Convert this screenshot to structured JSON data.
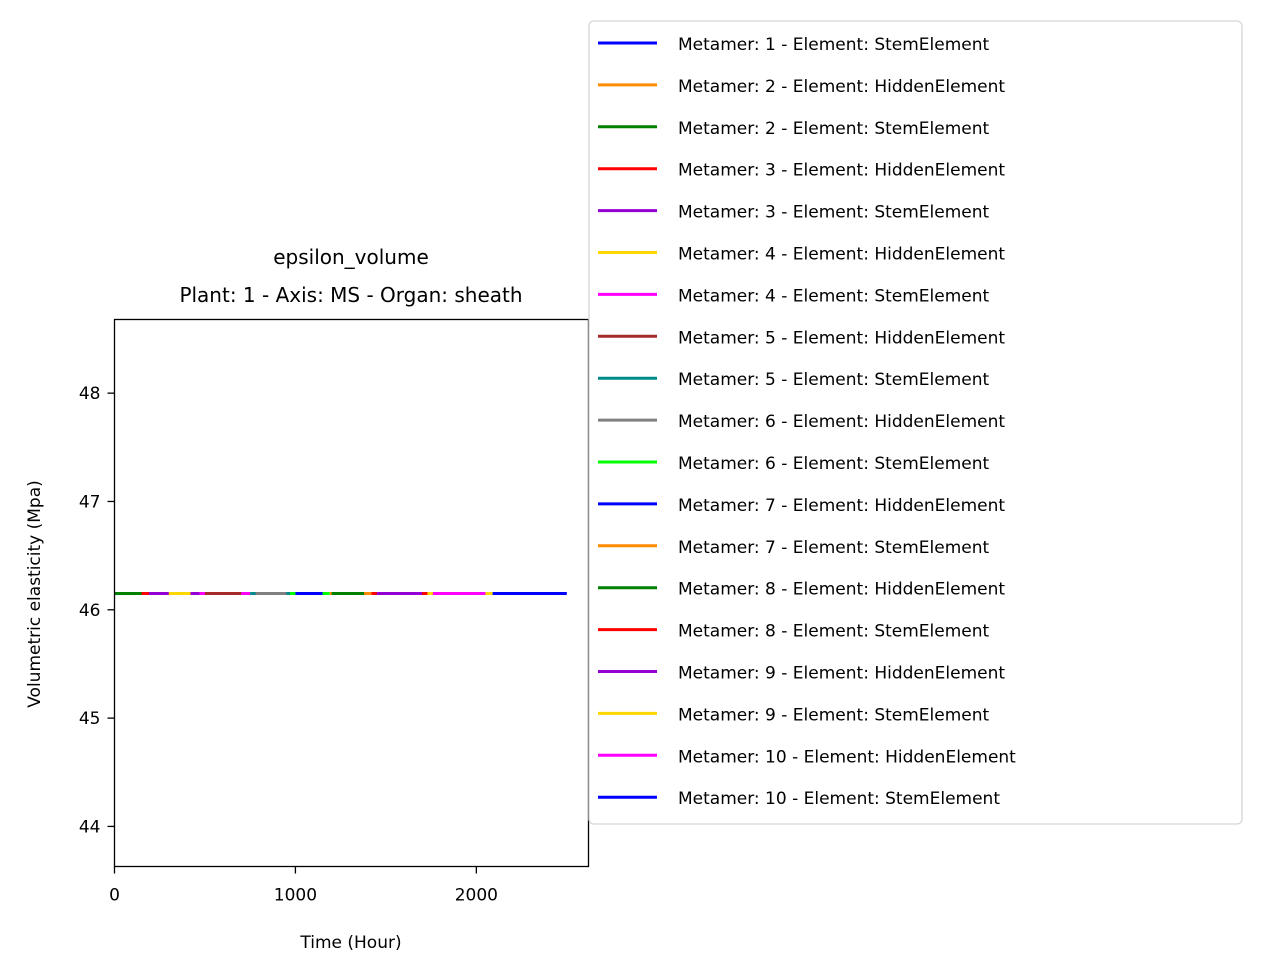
{
  "chart_data": {
    "type": "line",
    "title": "epsilon_volume",
    "subtitle": "Plant: 1 - Axis: MS - Organ: sheath",
    "xlabel": "Time (Hour)",
    "ylabel": "Volumetric elasticity (Mpa)",
    "xlim": [
      0,
      2620
    ],
    "ylim": [
      43.63,
      48.68
    ],
    "xticks": [
      0,
      1000,
      2000
    ],
    "yticks": [
      44,
      45,
      46,
      47,
      48
    ],
    "grid": false,
    "legend_position": "upper-right, outside the axes",
    "series": [
      {
        "name": "Metamer: 1 - Element: StemElement",
        "color": "#0000ff",
        "x": [
          0,
          50
        ],
        "values": [
          46.15,
          46.15
        ]
      },
      {
        "name": "Metamer: 2 - Element: HiddenElement",
        "color": "#ff8c00",
        "x": [
          50,
          120
        ],
        "values": [
          46.15,
          46.15
        ]
      },
      {
        "name": "Metamer: 2 - Element: StemElement",
        "color": "#008000",
        "x": [
          0,
          190
        ],
        "values": [
          46.15,
          46.15
        ]
      },
      {
        "name": "Metamer: 3 - Element: HiddenElement",
        "color": "#ff0000",
        "x": [
          150,
          260
        ],
        "values": [
          46.15,
          46.15
        ]
      },
      {
        "name": "Metamer: 3 - Element: StemElement",
        "color": "#9400d3",
        "x": [
          190,
          470
        ],
        "values": [
          46.15,
          46.15
        ]
      },
      {
        "name": "Metamer: 4 - Element: HiddenElement",
        "color": "#ffd700",
        "x": [
          300,
          420
        ],
        "values": [
          46.15,
          46.15
        ]
      },
      {
        "name": "Metamer: 4 - Element: StemElement",
        "color": "#ff00ff",
        "x": [
          470,
          750
        ],
        "values": [
          46.15,
          46.15
        ]
      },
      {
        "name": "Metamer: 5 - Element: HiddenElement",
        "color": "#a52a2a",
        "x": [
          500,
          700
        ],
        "values": [
          46.15,
          46.15
        ]
      },
      {
        "name": "Metamer: 5 - Element: StemElement",
        "color": "#008b8b",
        "x": [
          750,
          970
        ],
        "values": [
          46.15,
          46.15
        ]
      },
      {
        "name": "Metamer: 6 - Element: HiddenElement",
        "color": "#808080",
        "x": [
          780,
          950
        ],
        "values": [
          46.15,
          46.15
        ]
      },
      {
        "name": "Metamer: 6 - Element: StemElement",
        "color": "#00ff00",
        "x": [
          970,
          1190
        ],
        "values": [
          46.15,
          46.15
        ]
      },
      {
        "name": "Metamer: 7 - Element: HiddenElement",
        "color": "#0000ff",
        "x": [
          1000,
          1150
        ],
        "values": [
          46.15,
          46.15
        ]
      },
      {
        "name": "Metamer: 7 - Element: StemElement",
        "color": "#ff8c00",
        "x": [
          1190,
          1420
        ],
        "values": [
          46.15,
          46.15
        ]
      },
      {
        "name": "Metamer: 8 - Element: HiddenElement",
        "color": "#008000",
        "x": [
          1200,
          1380
        ],
        "values": [
          46.15,
          46.15
        ]
      },
      {
        "name": "Metamer: 8 - Element: StemElement",
        "color": "#ff0000",
        "x": [
          1420,
          1730
        ],
        "values": [
          46.15,
          46.15
        ]
      },
      {
        "name": "Metamer: 9 - Element: HiddenElement",
        "color": "#9400d3",
        "x": [
          1450,
          1700
        ],
        "values": [
          46.15,
          46.15
        ]
      },
      {
        "name": "Metamer: 9 - Element: StemElement",
        "color": "#ffd700",
        "x": [
          1730,
          2090
        ],
        "values": [
          46.15,
          46.15
        ]
      },
      {
        "name": "Metamer: 10 - Element: HiddenElement",
        "color": "#ff00ff",
        "x": [
          1760,
          2050
        ],
        "values": [
          46.15,
          46.15
        ]
      },
      {
        "name": "Metamer: 10 - Element: StemElement",
        "color": "#0000ff",
        "x": [
          2090,
          2500
        ],
        "values": [
          46.15,
          46.15
        ]
      }
    ]
  }
}
